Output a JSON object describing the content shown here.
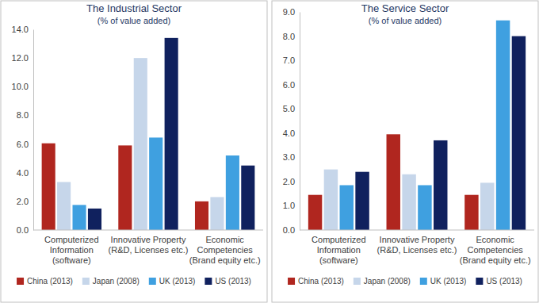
{
  "chart_data": [
    {
      "type": "bar",
      "title": "The Industrial Sector",
      "subtitle": "(% of value added)",
      "categories": [
        "Computerized\nInformation\n(software)",
        "Innovative Property\n(R&D, Licenses etc.)",
        "Economic\nCompetencies\n(Brand equity etc.)"
      ],
      "series": [
        {
          "name": "China (2013)",
          "color": "#b0261f",
          "values": [
            6.05,
            5.9,
            2.0
          ]
        },
        {
          "name": "Japan (2008)",
          "color": "#c6d6ea",
          "values": [
            3.35,
            12.0,
            2.3
          ]
        },
        {
          "name": "UK (2013)",
          "color": "#3fa0e0",
          "values": [
            1.75,
            6.45,
            5.2
          ]
        },
        {
          "name": "US (2013)",
          "color": "#10215e",
          "values": [
            1.5,
            13.4,
            4.5
          ]
        }
      ],
      "ylim": [
        0,
        14
      ],
      "yticks": [
        {
          "value": 0,
          "label": "0.0"
        },
        {
          "value": 2,
          "label": "2.0"
        },
        {
          "value": 4,
          "label": "4.0"
        },
        {
          "value": 6,
          "label": "6.0"
        },
        {
          "value": 8,
          "label": "8.0"
        },
        {
          "value": 10,
          "label": "10.0"
        },
        {
          "value": 12,
          "label": "12.0"
        },
        {
          "value": 14,
          "label": "14.0"
        }
      ],
      "grid": false,
      "legend": "bottom"
    },
    {
      "type": "bar",
      "title": "The Service Sector",
      "subtitle": "(% of value added)",
      "categories": [
        "Computerized\nInformation\n(software)",
        "Innovative Property\n(R&D, Licenses etc.)",
        "Economic\nCompetencies\n(Brand equity etc.)"
      ],
      "series": [
        {
          "name": "China (2013)",
          "color": "#b0261f",
          "values": [
            1.45,
            3.95,
            1.45
          ]
        },
        {
          "name": "Japan (2008)",
          "color": "#c6d6ea",
          "values": [
            2.5,
            2.3,
            1.95
          ]
        },
        {
          "name": "UK (2013)",
          "color": "#3fa0e0",
          "values": [
            1.85,
            1.85,
            8.65
          ]
        },
        {
          "name": "US (2013)",
          "color": "#10215e",
          "values": [
            2.4,
            3.7,
            8.0
          ]
        }
      ],
      "ylim": [
        0,
        9
      ],
      "yticks": [
        {
          "value": 0,
          "label": "0.0"
        },
        {
          "value": 1,
          "label": "1.0"
        },
        {
          "value": 2,
          "label": "2.0"
        },
        {
          "value": 3,
          "label": "3.0"
        },
        {
          "value": 4,
          "label": "4.0"
        },
        {
          "value": 5,
          "label": "5.0"
        },
        {
          "value": 6,
          "label": "6.0"
        },
        {
          "value": 7,
          "label": "7.0"
        },
        {
          "value": 8,
          "label": "8.0"
        },
        {
          "value": 9,
          "label": "9.0"
        }
      ],
      "grid": false,
      "legend": "bottom"
    }
  ]
}
